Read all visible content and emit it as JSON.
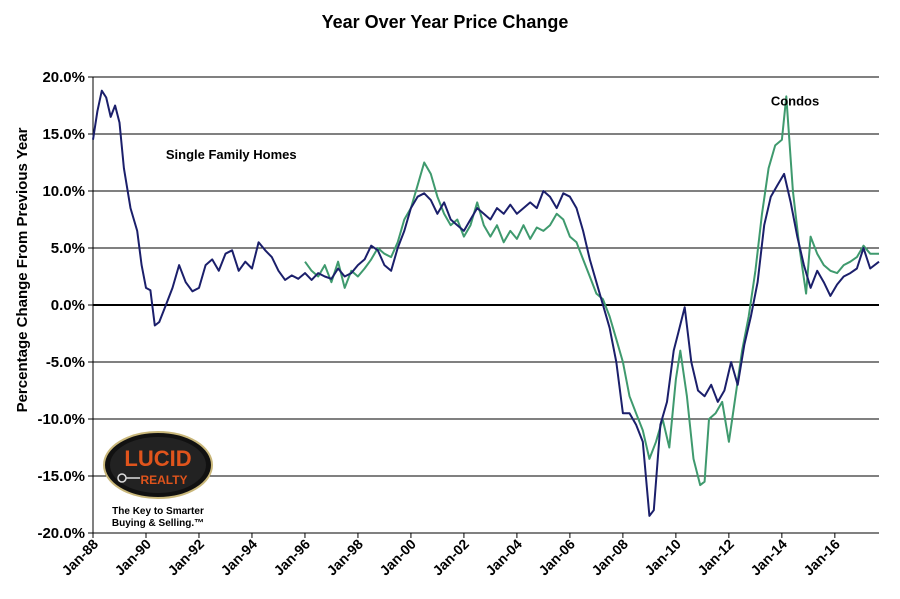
{
  "chart_data": {
    "type": "line",
    "title": "Year Over Year Price Change",
    "ylabel": "Percentage Change From Previous Year",
    "xlabel": "",
    "ylim": [
      -20,
      20
    ],
    "yticks": [
      {
        "value": 20,
        "label": "20.0%"
      },
      {
        "value": 15,
        "label": "15.0%"
      },
      {
        "value": 10,
        "label": "10.0%"
      },
      {
        "value": 5,
        "label": "5.0%"
      },
      {
        "value": 0,
        "label": "0.0%"
      },
      {
        "value": -5,
        "label": "-5.0%"
      },
      {
        "value": -10,
        "label": "-10.0%"
      },
      {
        "value": -15,
        "label": "-15.0%"
      },
      {
        "value": -20,
        "label": "-20.0%"
      }
    ],
    "xlim": [
      "1988-01",
      "2017-09"
    ],
    "xticks": [
      {
        "value": "1988-01",
        "label": "Jan-88"
      },
      {
        "value": "1990-01",
        "label": "Jan-90"
      },
      {
        "value": "1992-01",
        "label": "Jan-92"
      },
      {
        "value": "1994-01",
        "label": "Jan-94"
      },
      {
        "value": "1996-01",
        "label": "Jan-96"
      },
      {
        "value": "1998-01",
        "label": "Jan-98"
      },
      {
        "value": "2000-01",
        "label": "Jan-00"
      },
      {
        "value": "2002-01",
        "label": "Jan-02"
      },
      {
        "value": "2004-01",
        "label": "Jan-04"
      },
      {
        "value": "2006-01",
        "label": "Jan-06"
      },
      {
        "value": "2008-01",
        "label": "Jan-08"
      },
      {
        "value": "2010-01",
        "label": "Jan-10"
      },
      {
        "value": "2012-01",
        "label": "Jan-12"
      },
      {
        "value": "2014-01",
        "label": "Jan-14"
      },
      {
        "value": "2016-01",
        "label": "Jan-16"
      }
    ],
    "grid": "horizontal",
    "series": [
      {
        "name": "Single Family Homes",
        "color": "#1b1f6b",
        "points": [
          [
            "1988-01",
            14.5
          ],
          [
            "1988-03",
            17.0
          ],
          [
            "1988-05",
            18.8
          ],
          [
            "1988-07",
            18.2
          ],
          [
            "1988-09",
            16.5
          ],
          [
            "1988-11",
            17.5
          ],
          [
            "1989-01",
            16.0
          ],
          [
            "1989-03",
            12.0
          ],
          [
            "1989-06",
            8.5
          ],
          [
            "1989-09",
            6.5
          ],
          [
            "1989-11",
            3.5
          ],
          [
            "1990-01",
            1.5
          ],
          [
            "1990-03",
            1.3
          ],
          [
            "1990-05",
            -1.8
          ],
          [
            "1990-07",
            -1.5
          ],
          [
            "1990-10",
            0.0
          ],
          [
            "1991-01",
            1.5
          ],
          [
            "1991-04",
            3.5
          ],
          [
            "1991-07",
            2.0
          ],
          [
            "1991-10",
            1.2
          ],
          [
            "1992-01",
            1.5
          ],
          [
            "1992-04",
            3.5
          ],
          [
            "1992-07",
            4.0
          ],
          [
            "1992-10",
            3.0
          ],
          [
            "1993-01",
            4.5
          ],
          [
            "1993-04",
            4.8
          ],
          [
            "1993-07",
            3.0
          ],
          [
            "1993-10",
            3.8
          ],
          [
            "1994-01",
            3.2
          ],
          [
            "1994-04",
            5.5
          ],
          [
            "1994-07",
            4.8
          ],
          [
            "1994-10",
            4.2
          ],
          [
            "1995-01",
            3.0
          ],
          [
            "1995-04",
            2.2
          ],
          [
            "1995-07",
            2.6
          ],
          [
            "1995-10",
            2.3
          ],
          [
            "1996-01",
            2.8
          ],
          [
            "1996-04",
            2.2
          ],
          [
            "1996-07",
            2.8
          ],
          [
            "1996-10",
            2.5
          ],
          [
            "1997-01",
            2.3
          ],
          [
            "1997-04",
            3.2
          ],
          [
            "1997-07",
            2.5
          ],
          [
            "1997-10",
            2.8
          ],
          [
            "1998-01",
            3.5
          ],
          [
            "1998-04",
            4.0
          ],
          [
            "1998-07",
            5.2
          ],
          [
            "1998-10",
            4.8
          ],
          [
            "1999-01",
            3.5
          ],
          [
            "1999-04",
            3.0
          ],
          [
            "1999-07",
            5.0
          ],
          [
            "1999-10",
            6.5
          ],
          [
            "2000-01",
            8.5
          ],
          [
            "2000-04",
            9.5
          ],
          [
            "2000-07",
            9.8
          ],
          [
            "2000-10",
            9.2
          ],
          [
            "2001-01",
            8.0
          ],
          [
            "2001-04",
            9.0
          ],
          [
            "2001-07",
            7.5
          ],
          [
            "2001-10",
            7.0
          ],
          [
            "2002-01",
            6.5
          ],
          [
            "2002-04",
            7.5
          ],
          [
            "2002-07",
            8.5
          ],
          [
            "2002-10",
            8.0
          ],
          [
            "2003-01",
            7.5
          ],
          [
            "2003-04",
            8.5
          ],
          [
            "2003-07",
            8.0
          ],
          [
            "2003-10",
            8.8
          ],
          [
            "2004-01",
            8.0
          ],
          [
            "2004-04",
            8.5
          ],
          [
            "2004-07",
            9.0
          ],
          [
            "2004-10",
            8.5
          ],
          [
            "2005-01",
            10.0
          ],
          [
            "2005-04",
            9.5
          ],
          [
            "2005-07",
            8.5
          ],
          [
            "2005-10",
            9.8
          ],
          [
            "2006-01",
            9.5
          ],
          [
            "2006-04",
            8.5
          ],
          [
            "2006-07",
            6.5
          ],
          [
            "2006-10",
            4.0
          ],
          [
            "2007-01",
            2.0
          ],
          [
            "2007-04",
            0.0
          ],
          [
            "2007-07",
            -2.0
          ],
          [
            "2007-10",
            -5.0
          ],
          [
            "2008-01",
            -9.5
          ],
          [
            "2008-04",
            -9.5
          ],
          [
            "2008-07",
            -10.5
          ],
          [
            "2008-10",
            -12.0
          ],
          [
            "2009-01",
            -18.5
          ],
          [
            "2009-03",
            -18.0
          ],
          [
            "2009-06",
            -10.5
          ],
          [
            "2009-09",
            -8.5
          ],
          [
            "2009-12",
            -4.0
          ],
          [
            "2010-02",
            -2.5
          ],
          [
            "2010-05",
            -0.2
          ],
          [
            "2010-08",
            -5.0
          ],
          [
            "2010-11",
            -7.5
          ],
          [
            "2011-02",
            -8.0
          ],
          [
            "2011-05",
            -7.0
          ],
          [
            "2011-08",
            -8.5
          ],
          [
            "2011-11",
            -7.5
          ],
          [
            "2012-02",
            -5.0
          ],
          [
            "2012-05",
            -7.0
          ],
          [
            "2012-08",
            -3.5
          ],
          [
            "2012-11",
            -1.0
          ],
          [
            "2013-02",
            2.0
          ],
          [
            "2013-05",
            7.0
          ],
          [
            "2013-08",
            9.5
          ],
          [
            "2013-11",
            10.5
          ],
          [
            "2014-02",
            11.5
          ],
          [
            "2014-05",
            9.0
          ],
          [
            "2014-08",
            6.0
          ],
          [
            "2014-11",
            3.5
          ],
          [
            "2015-02",
            1.5
          ],
          [
            "2015-05",
            3.0
          ],
          [
            "2015-08",
            2.0
          ],
          [
            "2015-11",
            0.8
          ],
          [
            "2016-02",
            1.8
          ],
          [
            "2016-05",
            2.5
          ],
          [
            "2016-08",
            2.8
          ],
          [
            "2016-11",
            3.2
          ],
          [
            "2017-02",
            5.0
          ],
          [
            "2017-05",
            3.2
          ],
          [
            "2017-09",
            3.8
          ]
        ]
      },
      {
        "name": "Condos",
        "color": "#3f9a6e",
        "points": [
          [
            "1996-01",
            3.8
          ],
          [
            "1996-04",
            3.0
          ],
          [
            "1996-07",
            2.5
          ],
          [
            "1996-10",
            3.5
          ],
          [
            "1997-01",
            2.0
          ],
          [
            "1997-04",
            3.8
          ],
          [
            "1997-07",
            1.5
          ],
          [
            "1997-10",
            3.0
          ],
          [
            "1998-01",
            2.5
          ],
          [
            "1998-04",
            3.2
          ],
          [
            "1998-07",
            4.0
          ],
          [
            "1998-10",
            5.0
          ],
          [
            "1999-01",
            4.5
          ],
          [
            "1999-04",
            4.2
          ],
          [
            "1999-07",
            5.5
          ],
          [
            "1999-10",
            7.5
          ],
          [
            "2000-01",
            8.5
          ],
          [
            "2000-04",
            10.5
          ],
          [
            "2000-07",
            12.5
          ],
          [
            "2000-10",
            11.5
          ],
          [
            "2001-01",
            9.5
          ],
          [
            "2001-04",
            8.0
          ],
          [
            "2001-07",
            7.0
          ],
          [
            "2001-10",
            7.5
          ],
          [
            "2002-01",
            6.0
          ],
          [
            "2002-04",
            7.0
          ],
          [
            "2002-07",
            9.0
          ],
          [
            "2002-10",
            7.0
          ],
          [
            "2003-01",
            6.0
          ],
          [
            "2003-04",
            7.0
          ],
          [
            "2003-07",
            5.5
          ],
          [
            "2003-10",
            6.5
          ],
          [
            "2004-01",
            5.8
          ],
          [
            "2004-04",
            7.0
          ],
          [
            "2004-07",
            5.8
          ],
          [
            "2004-10",
            6.8
          ],
          [
            "2005-01",
            6.5
          ],
          [
            "2005-04",
            7.0
          ],
          [
            "2005-07",
            8.0
          ],
          [
            "2005-10",
            7.5
          ],
          [
            "2006-01",
            6.0
          ],
          [
            "2006-04",
            5.5
          ],
          [
            "2006-07",
            4.0
          ],
          [
            "2006-10",
            2.5
          ],
          [
            "2007-01",
            1.0
          ],
          [
            "2007-04",
            0.5
          ],
          [
            "2007-07",
            -1.0
          ],
          [
            "2007-10",
            -3.0
          ],
          [
            "2008-01",
            -5.0
          ],
          [
            "2008-04",
            -8.0
          ],
          [
            "2008-07",
            -9.5
          ],
          [
            "2008-10",
            -11.0
          ],
          [
            "2009-01",
            -13.5
          ],
          [
            "2009-04",
            -12.0
          ],
          [
            "2009-07",
            -10.0
          ],
          [
            "2009-10",
            -12.5
          ],
          [
            "2010-01",
            -6.5
          ],
          [
            "2010-03",
            -4.0
          ],
          [
            "2010-06",
            -8.0
          ],
          [
            "2010-09",
            -13.5
          ],
          [
            "2010-12",
            -15.8
          ],
          [
            "2011-02",
            -15.5
          ],
          [
            "2011-04",
            -10.0
          ],
          [
            "2011-07",
            -9.5
          ],
          [
            "2011-10",
            -8.5
          ],
          [
            "2012-01",
            -12.0
          ],
          [
            "2012-04",
            -8.0
          ],
          [
            "2012-07",
            -4.0
          ],
          [
            "2012-10",
            -1.0
          ],
          [
            "2013-01",
            3.0
          ],
          [
            "2013-04",
            8.0
          ],
          [
            "2013-07",
            12.0
          ],
          [
            "2013-10",
            14.0
          ],
          [
            "2014-01",
            14.5
          ],
          [
            "2014-03",
            18.3
          ],
          [
            "2014-06",
            10.0
          ],
          [
            "2014-09",
            5.0
          ],
          [
            "2014-12",
            1.0
          ],
          [
            "2015-02",
            6.0
          ],
          [
            "2015-05",
            4.5
          ],
          [
            "2015-08",
            3.5
          ],
          [
            "2015-11",
            3.0
          ],
          [
            "2016-02",
            2.8
          ],
          [
            "2016-05",
            3.5
          ],
          [
            "2016-08",
            3.8
          ],
          [
            "2016-11",
            4.2
          ],
          [
            "2017-02",
            5.2
          ],
          [
            "2017-05",
            4.5
          ],
          [
            "2017-09",
            4.5
          ]
        ]
      }
    ],
    "annotations": [
      {
        "text": "Single Family Homes",
        "at": [
          "1990-10",
          12.8
        ]
      },
      {
        "text": "Condos",
        "at": [
          "2013-08",
          17.5
        ]
      }
    ]
  },
  "logo": {
    "brand_top": "LUCID",
    "brand_bottom": "REALTY",
    "tagline_line1": "The Key to Smarter",
    "tagline_line2": "Buying & Selling.™"
  }
}
